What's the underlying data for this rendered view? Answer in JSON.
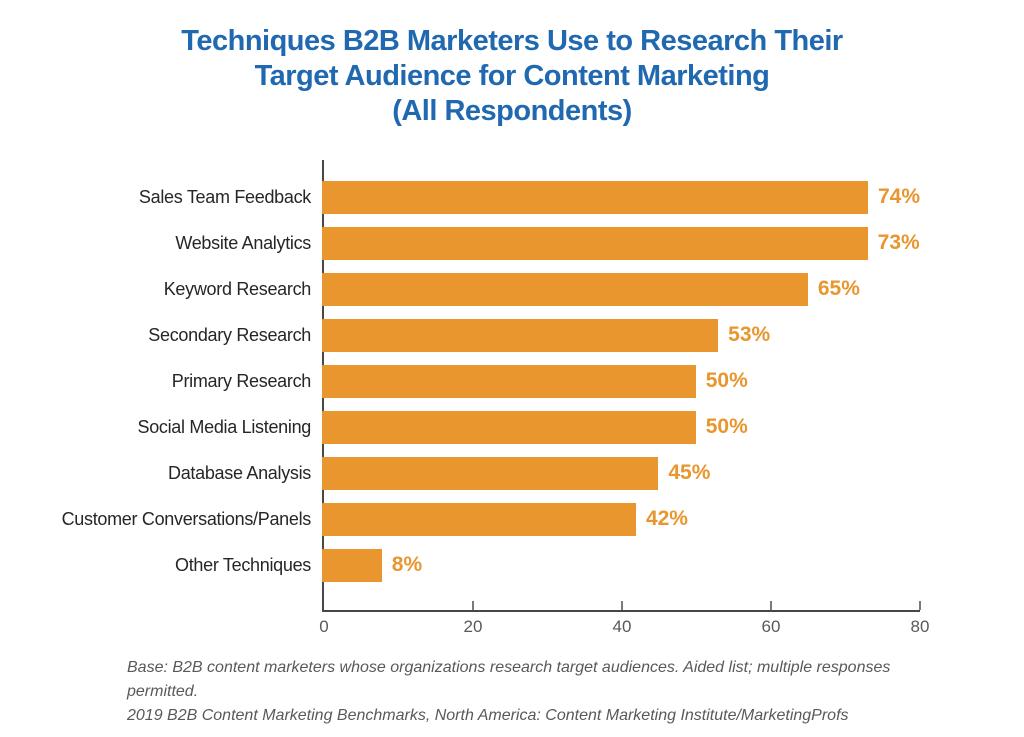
{
  "title": {
    "line1": "Techniques B2B Marketers Use to Research Their",
    "line2": "Target Audience for Content Marketing",
    "line3": "(All Respondents)"
  },
  "colors": {
    "bar": "#E8962D",
    "title_text": "#2069B1",
    "category_text": "#262626",
    "axis_text": "#595959",
    "footer_text": "#58595B"
  },
  "chart_data": {
    "type": "bar",
    "orientation": "horizontal",
    "title": "Techniques B2B Marketers Use to Research Their Target Audience for Content Marketing (All Respondents)",
    "categories": [
      "Sales Team Feedback",
      "Website Analytics",
      "Keyword Research",
      "Secondary Research",
      "Primary Research",
      "Social Media Listening",
      "Database Analysis",
      "Customer Conversations/Panels",
      "Other Techniques"
    ],
    "values": [
      74,
      73,
      65,
      53,
      50,
      50,
      45,
      42,
      8
    ],
    "value_labels": [
      "74%",
      "73%",
      "65%",
      "53%",
      "50%",
      "50%",
      "45%",
      "42%",
      "8%"
    ],
    "xlabel": "",
    "ylabel": "",
    "xlim": [
      0,
      80
    ],
    "xticks": [
      0,
      20,
      40,
      60,
      80
    ],
    "grid": false,
    "legend": false,
    "bar_color": "#E8962D"
  },
  "footer": {
    "line1": "Base: B2B content marketers whose organizations research target audiences. Aided list; multiple responses permitted.",
    "line2": "2019 B2B Content Marketing Benchmarks, North America: Content Marketing Institute/MarketingProfs"
  }
}
